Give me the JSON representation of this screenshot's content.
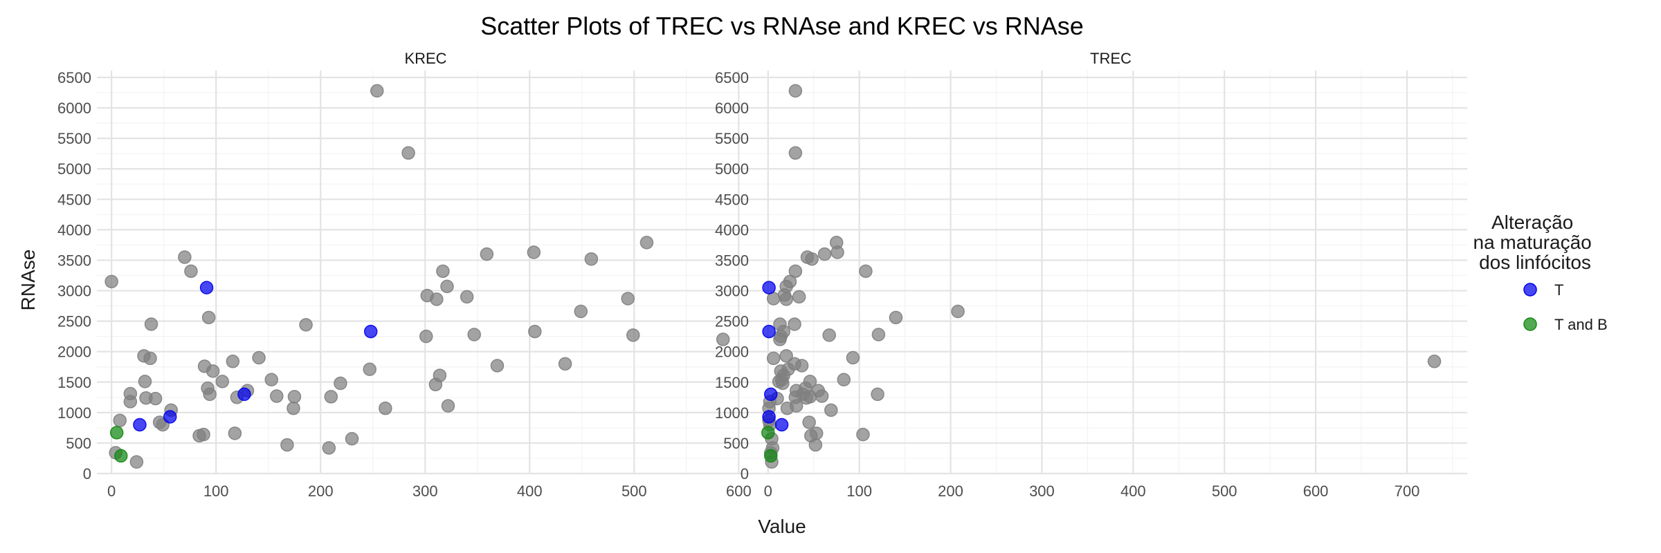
{
  "chart_data": {
    "type": "scatter",
    "title": "Scatter Plots of TREC vs RNAse and KREC vs RNAse",
    "xlabel": "Value",
    "ylabel": "RNAse",
    "grid": true,
    "legend_position": "right",
    "legend": {
      "title_lines": [
        "Alteração",
        "na maturação",
        "dos linfócitos"
      ],
      "entries": [
        {
          "label": "T",
          "color": "#0000ee"
        },
        {
          "label": "T and B",
          "color": "#118811"
        }
      ]
    },
    "default_point_color": "#808080",
    "ylim": [
      0,
      6500
    ],
    "y_ticks": [
      "0",
      "500",
      "1000",
      "1500",
      "2000",
      "2500",
      "3000",
      "3500",
      "4000",
      "4500",
      "5000",
      "5500",
      "6000",
      "6500"
    ],
    "panels": [
      {
        "facet": "KREC",
        "xlim": [
          -14,
          615
        ],
        "x_ticks": [
          "0",
          "100",
          "200",
          "300",
          "400",
          "500",
          "600"
        ],
        "points": [
          {
            "x": 0,
            "y": 3150
          },
          {
            "x": 70,
            "y": 3550
          },
          {
            "x": 76,
            "y": 3320
          },
          {
            "x": 38,
            "y": 2450
          },
          {
            "x": 31,
            "y": 1930
          },
          {
            "x": 37,
            "y": 1890
          },
          {
            "x": 32,
            "y": 1510
          },
          {
            "x": 18,
            "y": 1310
          },
          {
            "x": 18,
            "y": 1180
          },
          {
            "x": 33,
            "y": 1240
          },
          {
            "x": 42,
            "y": 1230
          },
          {
            "x": 57,
            "y": 1040
          },
          {
            "x": 8,
            "y": 870
          },
          {
            "x": 46,
            "y": 840
          },
          {
            "x": 49,
            "y": 800
          },
          {
            "x": 4,
            "y": 340
          },
          {
            "x": 24,
            "y": 190
          },
          {
            "x": 84,
            "y": 620
          },
          {
            "x": 88,
            "y": 640
          },
          {
            "x": 89,
            "y": 1760
          },
          {
            "x": 93,
            "y": 2560
          },
          {
            "x": 92,
            "y": 1400
          },
          {
            "x": 94,
            "y": 1300
          },
          {
            "x": 97,
            "y": 1680
          },
          {
            "x": 106,
            "y": 1510
          },
          {
            "x": 116,
            "y": 1840
          },
          {
            "x": 120,
            "y": 1250
          },
          {
            "x": 130,
            "y": 1360
          },
          {
            "x": 118,
            "y": 660
          },
          {
            "x": 141,
            "y": 1900
          },
          {
            "x": 153,
            "y": 1540
          },
          {
            "x": 158,
            "y": 1270
          },
          {
            "x": 168,
            "y": 470
          },
          {
            "x": 175,
            "y": 1260
          },
          {
            "x": 174,
            "y": 1070
          },
          {
            "x": 186,
            "y": 2440
          },
          {
            "x": 210,
            "y": 1260
          },
          {
            "x": 219,
            "y": 1480
          },
          {
            "x": 208,
            "y": 420
          },
          {
            "x": 230,
            "y": 570
          },
          {
            "x": 247,
            "y": 1710
          },
          {
            "x": 254,
            "y": 6280
          },
          {
            "x": 262,
            "y": 1070
          },
          {
            "x": 284,
            "y": 5260
          },
          {
            "x": 301,
            "y": 2250
          },
          {
            "x": 302,
            "y": 2920
          },
          {
            "x": 311,
            "y": 2860
          },
          {
            "x": 317,
            "y": 3320
          },
          {
            "x": 321,
            "y": 3070
          },
          {
            "x": 310,
            "y": 1460
          },
          {
            "x": 314,
            "y": 1610
          },
          {
            "x": 322,
            "y": 1110
          },
          {
            "x": 340,
            "y": 2900
          },
          {
            "x": 347,
            "y": 2280
          },
          {
            "x": 359,
            "y": 3600
          },
          {
            "x": 369,
            "y": 1770
          },
          {
            "x": 404,
            "y": 3630
          },
          {
            "x": 405,
            "y": 2330
          },
          {
            "x": 434,
            "y": 1800
          },
          {
            "x": 449,
            "y": 2660
          },
          {
            "x": 459,
            "y": 3520
          },
          {
            "x": 494,
            "y": 2870
          },
          {
            "x": 499,
            "y": 2270
          },
          {
            "x": 512,
            "y": 3790
          },
          {
            "x": 585,
            "y": 2200
          },
          {
            "x": 91,
            "y": 3050,
            "group": "T"
          },
          {
            "x": 248,
            "y": 2330,
            "group": "T"
          },
          {
            "x": 127,
            "y": 1300,
            "group": "T"
          },
          {
            "x": 56,
            "y": 930,
            "group": "T"
          },
          {
            "x": 27,
            "y": 800,
            "group": "T"
          },
          {
            "x": 5,
            "y": 670,
            "group": "T and B"
          },
          {
            "x": 9,
            "y": 290,
            "group": "T and B"
          }
        ]
      },
      {
        "facet": "TREC",
        "xlim": [
          -15,
          766
        ],
        "x_ticks": [
          "0",
          "100",
          "200",
          "300",
          "400",
          "500",
          "600",
          "700"
        ],
        "points": [
          {
            "x": 30,
            "y": 6280
          },
          {
            "x": 30,
            "y": 5260
          },
          {
            "x": 75,
            "y": 3790
          },
          {
            "x": 76,
            "y": 3630
          },
          {
            "x": 62,
            "y": 3600
          },
          {
            "x": 43,
            "y": 3550
          },
          {
            "x": 48,
            "y": 3520
          },
          {
            "x": 30,
            "y": 3320
          },
          {
            "x": 107,
            "y": 3320
          },
          {
            "x": 20,
            "y": 3070
          },
          {
            "x": 24,
            "y": 3150
          },
          {
            "x": 18,
            "y": 2930
          },
          {
            "x": 6,
            "y": 2870
          },
          {
            "x": 20,
            "y": 2860
          },
          {
            "x": 34,
            "y": 2900
          },
          {
            "x": 208,
            "y": 2660
          },
          {
            "x": 140,
            "y": 2560
          },
          {
            "x": 13,
            "y": 2450
          },
          {
            "x": 29,
            "y": 2450
          },
          {
            "x": 17,
            "y": 2330
          },
          {
            "x": 14,
            "y": 2250
          },
          {
            "x": 13,
            "y": 2200
          },
          {
            "x": 67,
            "y": 2270
          },
          {
            "x": 121,
            "y": 2280
          },
          {
            "x": 20,
            "y": 1930
          },
          {
            "x": 6,
            "y": 1890
          },
          {
            "x": 93,
            "y": 1900
          },
          {
            "x": 29,
            "y": 1800
          },
          {
            "x": 37,
            "y": 1770
          },
          {
            "x": 22,
            "y": 1710
          },
          {
            "x": 14,
            "y": 1680
          },
          {
            "x": 17,
            "y": 1610
          },
          {
            "x": 15,
            "y": 1540
          },
          {
            "x": 12,
            "y": 1510
          },
          {
            "x": 83,
            "y": 1540
          },
          {
            "x": 16,
            "y": 1480
          },
          {
            "x": 46,
            "y": 1510
          },
          {
            "x": 41,
            "y": 1400
          },
          {
            "x": 31,
            "y": 1360
          },
          {
            "x": 55,
            "y": 1360
          },
          {
            "x": 38,
            "y": 1300
          },
          {
            "x": 46,
            "y": 1260
          },
          {
            "x": 59,
            "y": 1270
          },
          {
            "x": 42,
            "y": 1240
          },
          {
            "x": 10,
            "y": 1230
          },
          {
            "x": 30,
            "y": 1250
          },
          {
            "x": 120,
            "y": 1300
          },
          {
            "x": 21,
            "y": 1070
          },
          {
            "x": 31,
            "y": 1110
          },
          {
            "x": 69,
            "y": 1040
          },
          {
            "x": 1,
            "y": 1070
          },
          {
            "x": 2,
            "y": 1180
          },
          {
            "x": 45,
            "y": 840
          },
          {
            "x": 47,
            "y": 620
          },
          {
            "x": 53,
            "y": 660
          },
          {
            "x": 52,
            "y": 470
          },
          {
            "x": 104,
            "y": 640
          },
          {
            "x": 1,
            "y": 870
          },
          {
            "x": 2,
            "y": 800
          },
          {
            "x": 4,
            "y": 570
          },
          {
            "x": 5,
            "y": 420
          },
          {
            "x": 3,
            "y": 340
          },
          {
            "x": 4,
            "y": 190
          },
          {
            "x": 730,
            "y": 1840
          },
          {
            "x": 1,
            "y": 3050,
            "group": "T"
          },
          {
            "x": 1,
            "y": 2330,
            "group": "T"
          },
          {
            "x": 3,
            "y": 1300,
            "group": "T"
          },
          {
            "x": 1,
            "y": 930,
            "group": "T"
          },
          {
            "x": 15,
            "y": 800,
            "group": "T"
          },
          {
            "x": 0,
            "y": 670,
            "group": "T and B"
          },
          {
            "x": 3,
            "y": 290,
            "group": "T and B"
          }
        ]
      }
    ]
  }
}
